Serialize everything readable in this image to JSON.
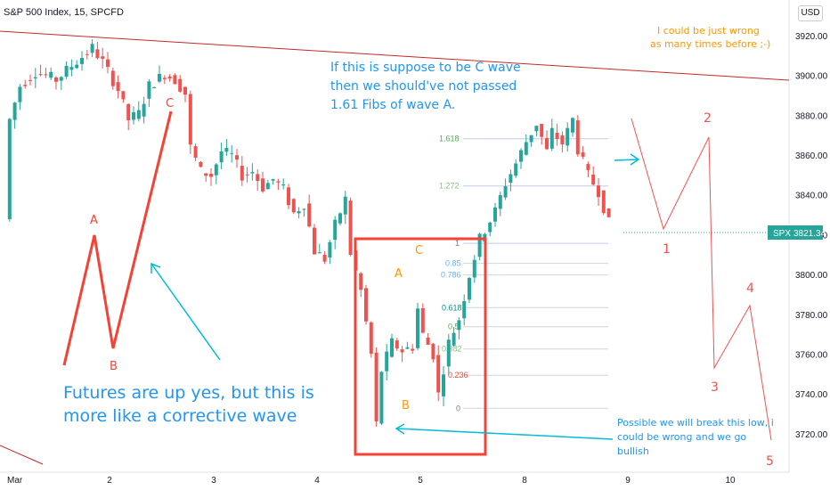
{
  "header": {
    "title": "S&P 500 Index, 15, SPCFD"
  },
  "currency": "USD",
  "price_tag": {
    "symbol": "SPX",
    "value": "3821.34"
  },
  "colors": {
    "up": "#26a69a",
    "down": "#ef5350",
    "axis_tag": "#26a69a",
    "annotation_blue": "#2196f3",
    "annotation_orange": "#ff9800",
    "box_red": "#f44336",
    "trend_line": "#c62828",
    "projection": "#ef5350",
    "fib_line": "#90caf9",
    "arrow_teal": "#00bcd4"
  },
  "chart_data": {
    "type": "candlestick",
    "ylim": [
      3708,
      3933
    ],
    "y_ticks": [
      3720,
      3740,
      3760,
      3780,
      3800,
      3820,
      3840,
      3860,
      3880,
      3900,
      3920
    ],
    "x_ticks": [
      "Mar",
      "2",
      "3",
      "4",
      "5",
      "8",
      "9",
      "10"
    ],
    "last_price": 3821.34,
    "close_path": [
      [
        0,
        3828
      ],
      [
        1,
        3878
      ],
      [
        3,
        3895
      ],
      [
        6,
        3902
      ],
      [
        10,
        3898
      ],
      [
        13,
        3905
      ],
      [
        17,
        3914
      ],
      [
        19,
        3907
      ],
      [
        22,
        3893
      ],
      [
        24,
        3878
      ],
      [
        26,
        3881
      ],
      [
        28,
        3895
      ],
      [
        31,
        3901
      ],
      [
        33,
        3898
      ],
      [
        35,
        3891
      ],
      [
        36,
        3864
      ],
      [
        38,
        3852
      ],
      [
        40,
        3850
      ],
      [
        42,
        3862
      ],
      [
        44,
        3860
      ],
      [
        46,
        3850
      ],
      [
        48,
        3852
      ],
      [
        50,
        3844
      ],
      [
        52,
        3848
      ],
      [
        54,
        3843
      ],
      [
        56,
        3831
      ],
      [
        58,
        3836
      ],
      [
        60,
        3812
      ],
      [
        62,
        3808
      ],
      [
        64,
        3825
      ],
      [
        66,
        3838
      ],
      [
        67,
        3811
      ],
      [
        69,
        3792
      ],
      [
        71,
        3760
      ],
      [
        72,
        3725
      ],
      [
        73,
        3752
      ],
      [
        75,
        3766
      ],
      [
        77,
        3762
      ],
      [
        79,
        3764
      ],
      [
        80,
        3783
      ],
      [
        81,
        3770
      ],
      [
        83,
        3760
      ],
      [
        84,
        3740
      ],
      [
        86,
        3766
      ],
      [
        88,
        3778
      ],
      [
        90,
        3800
      ],
      [
        92,
        3818
      ],
      [
        95,
        3832
      ],
      [
        97,
        3846
      ],
      [
        99,
        3856
      ],
      [
        101,
        3867
      ],
      [
        103,
        3876
      ],
      [
        105,
        3862
      ],
      [
        106,
        3872
      ],
      [
        108,
        3866
      ],
      [
        110,
        3878
      ],
      [
        111,
        3863
      ],
      [
        113,
        3850
      ],
      [
        115,
        3842
      ],
      [
        117,
        3826
      ]
    ],
    "fib_levels": [
      {
        "label": "0",
        "price": 3733
      },
      {
        "label": "0.236",
        "price": 3749.6
      },
      {
        "label": "0.382",
        "price": 3762.8
      },
      {
        "label": "0.5",
        "price": 3774
      },
      {
        "label": "0.618",
        "price": 3783.6
      },
      {
        "label": "0.786",
        "price": 3800
      },
      {
        "label": "0.85",
        "price": 3805.8
      },
      {
        "label": "1",
        "price": 3815.9
      },
      {
        "label": "1.272",
        "price": 3844.7
      },
      {
        "label": "1.618",
        "price": 3868.4
      }
    ],
    "wave_labels_left": [
      "A",
      "B",
      "C"
    ],
    "wave_labels_box": [
      "A",
      "B",
      "C"
    ],
    "projection_labels": [
      "1",
      "2",
      "3",
      "4",
      "5"
    ],
    "annotations": {
      "top_right": [
        "I could be just wrong",
        "as many times before ;-)"
      ],
      "center_top": [
        "If this is suppose to be C wave",
        "then we should've not passed",
        "1.61 Fibs of wave A."
      ],
      "bottom_left": [
        "Futures are up yes, but this is",
        "more like a corrective wave"
      ],
      "bottom_right": [
        "Possible we will break this low, i",
        "could be wrong and we go",
        "bullish"
      ]
    }
  }
}
